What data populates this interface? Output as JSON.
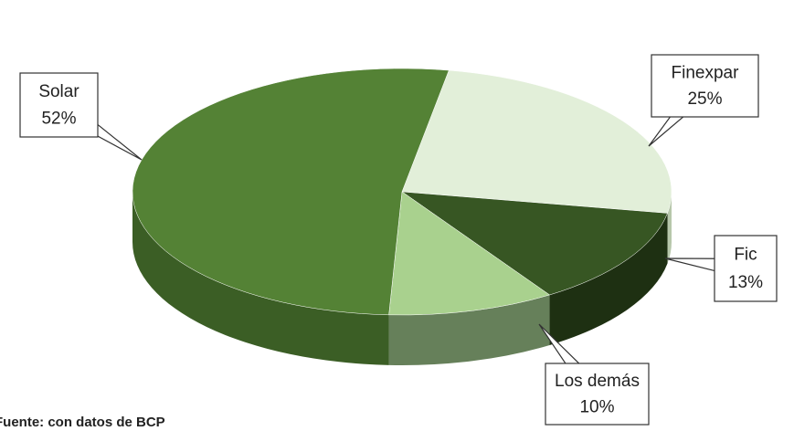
{
  "chart_data": {
    "type": "pie",
    "categories": [
      "Finexpar",
      "Fic",
      "Los demás",
      "Solar"
    ],
    "values": [
      25,
      13,
      10,
      52
    ],
    "value_labels": [
      "25%",
      "13%",
      "10%",
      "52%"
    ],
    "colors": [
      "#e2efd9",
      "#375623",
      "#a9d18e",
      "#548235"
    ],
    "side_colors": [
      "#b7c7ab",
      "#1e3012",
      "#66805a",
      "#3b5e25"
    ],
    "three_d": true,
    "source": "Fuente: con datos de BCP"
  }
}
